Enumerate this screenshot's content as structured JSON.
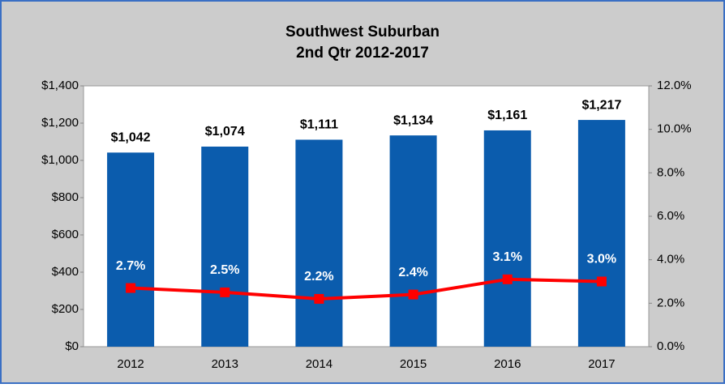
{
  "chart_data": {
    "type": "combo",
    "title": "Southwest Suburban",
    "subtitle": "2nd Qtr 2012-2017",
    "categories": [
      "2012",
      "2013",
      "2014",
      "2015",
      "2016",
      "2017"
    ],
    "series": [
      {
        "type": "bar",
        "color": "#0b5cad",
        "values": [
          1042,
          1074,
          1111,
          1134,
          1161,
          1217
        ],
        "value_labels": [
          "$1,042",
          "$1,074",
          "$1,111",
          "$1,134",
          "$1,161",
          "$1,217"
        ]
      },
      {
        "type": "line",
        "axis": "y2",
        "color": "#ff0000",
        "values": [
          2.7,
          2.5,
          2.2,
          2.4,
          3.1,
          3.0
        ],
        "value_labels": [
          "2.7%",
          "2.5%",
          "2.2%",
          "2.4%",
          "3.1%",
          "3.0%"
        ]
      }
    ],
    "ylim": [
      0,
      1400
    ],
    "yticks": [
      {
        "value": 0,
        "label": "$0"
      },
      {
        "value": 200,
        "label": "$200"
      },
      {
        "value": 400,
        "label": "$400"
      },
      {
        "value": 600,
        "label": "$600"
      },
      {
        "value": 800,
        "label": "$800"
      },
      {
        "value": 1000,
        "label": "$1,000"
      },
      {
        "value": 1200,
        "label": "$1,200"
      },
      {
        "value": 1400,
        "label": "$1,400"
      }
    ],
    "y2lim": [
      0,
      12
    ],
    "y2ticks": [
      {
        "value": 0,
        "label": "0.0%"
      },
      {
        "value": 2,
        "label": "2.0%"
      },
      {
        "value": 4,
        "label": "4.0%"
      },
      {
        "value": 6,
        "label": "6.0%"
      },
      {
        "value": 8,
        "label": "8.0%"
      },
      {
        "value": 10,
        "label": "10.0%"
      },
      {
        "value": 12,
        "label": "12.0%"
      }
    ]
  }
}
